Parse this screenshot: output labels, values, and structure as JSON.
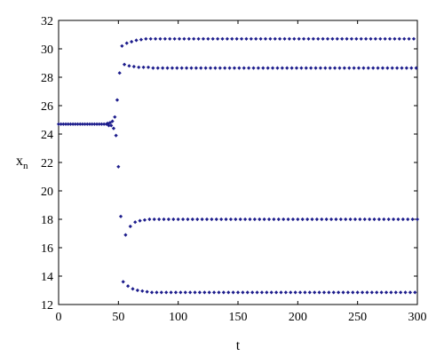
{
  "chart_data": {
    "type": "scatter",
    "xlabel": "t",
    "ylabel_main": "x",
    "ylabel_sub": "n",
    "xlim": [
      0,
      300
    ],
    "ylim": [
      12,
      32
    ],
    "x_ticks": [
      0,
      50,
      100,
      150,
      200,
      250,
      300
    ],
    "y_ticks": [
      12,
      14,
      16,
      18,
      20,
      22,
      24,
      26,
      28,
      30,
      32
    ],
    "grid": false,
    "marker_color": "#1c1c8c",
    "series": [
      {
        "points": [
          [
            0,
            24.7
          ],
          [
            2,
            24.7
          ],
          [
            4,
            24.7
          ],
          [
            6,
            24.7
          ],
          [
            8,
            24.7
          ],
          [
            10,
            24.7
          ],
          [
            12,
            24.7
          ],
          [
            14,
            24.7
          ],
          [
            16,
            24.7
          ],
          [
            18,
            24.7
          ],
          [
            20,
            24.7
          ],
          [
            22,
            24.7
          ],
          [
            24,
            24.7
          ],
          [
            26,
            24.7
          ],
          [
            28,
            24.7
          ],
          [
            30,
            24.7
          ],
          [
            32,
            24.7
          ],
          [
            34,
            24.7
          ],
          [
            36,
            24.7
          ],
          [
            38,
            24.7
          ],
          [
            40,
            24.7
          ],
          [
            41,
            24.75
          ],
          [
            42,
            24.6
          ],
          [
            43,
            24.8
          ],
          [
            44,
            24.6
          ],
          [
            45,
            24.9
          ],
          [
            46,
            24.4
          ],
          [
            47,
            25.2
          ],
          [
            48,
            23.9
          ],
          [
            49,
            26.4
          ],
          [
            50,
            21.7
          ],
          [
            51,
            28.3
          ],
          [
            52,
            18.2
          ],
          [
            53,
            30.2
          ],
          [
            54,
            13.6
          ],
          [
            55,
            28.9
          ],
          [
            56,
            16.9
          ],
          [
            57,
            30.4
          ],
          [
            58,
            13.3
          ],
          [
            59,
            28.8
          ],
          [
            60,
            17.5
          ],
          [
            61,
            30.5
          ],
          [
            62,
            13.1
          ],
          [
            63,
            28.75
          ],
          [
            64,
            17.8
          ],
          [
            65,
            30.6
          ],
          [
            66,
            13.0
          ],
          [
            67,
            28.7
          ],
          [
            68,
            17.9
          ],
          [
            69,
            30.65
          ],
          [
            70,
            12.95
          ],
          [
            71,
            28.7
          ],
          [
            72,
            17.95
          ],
          [
            73,
            30.7
          ],
          [
            74,
            12.9
          ],
          [
            75,
            28.7
          ],
          [
            76,
            18.0
          ]
        ]
      },
      {
        "branches": [
          {
            "start": 77,
            "end": 298,
            "step": 4,
            "value": 30.7
          },
          {
            "start": 79,
            "end": 299,
            "step": 4,
            "value": 28.65
          },
          {
            "start": 80,
            "end": 300,
            "step": 4,
            "value": 18.0
          },
          {
            "start": 78,
            "end": 298,
            "step": 4,
            "value": 12.85
          }
        ]
      }
    ]
  }
}
